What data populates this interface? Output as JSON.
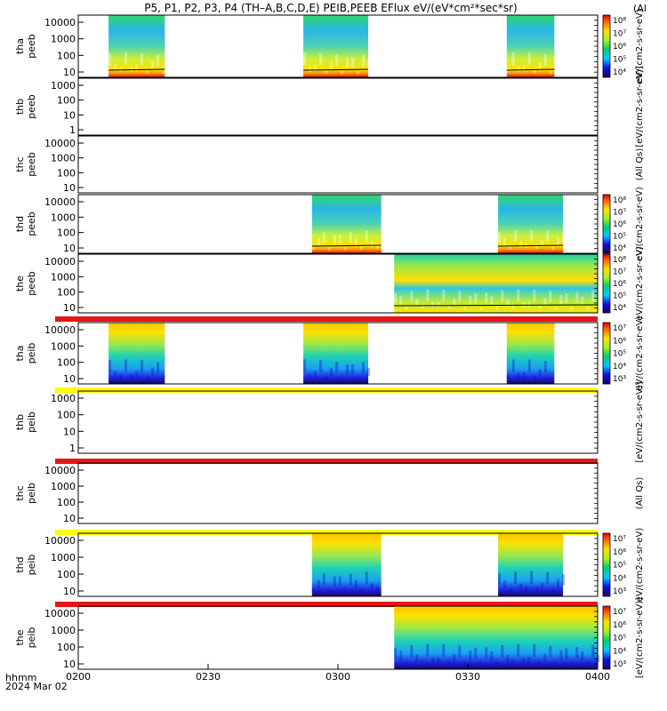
{
  "header": {
    "title": "P5, P1, P2, P3, P4 (TH–A,B,C,D,E) PEIB,PEEB EFlux eV/(eV*cm²*sec*sr)",
    "title_right_fragment": "(Al"
  },
  "footer": {
    "time_label": "hhmm",
    "date_label": "2024 Mar 02"
  },
  "colors": {
    "panel_border": "#000000",
    "red_bar": "#e8141a",
    "yellow_bar": "#ffff00",
    "spectrogram_low": "#1a1ad0",
    "spectrogram_mid": "#3cd25a",
    "spectrogram_high": "#ffd200",
    "spectrogram_peak": "#ff5a00"
  },
  "chart_data": {
    "type": "heatmap",
    "x_axis": {
      "unit": "hhmm",
      "range": [
        "0200",
        "0400"
      ],
      "ticks": [
        "0200",
        "0230",
        "0300",
        "0330",
        "0400"
      ]
    },
    "panels": [
      {
        "probe": "tha",
        "instrument": "peeb",
        "label_lines": [
          "tha",
          "peeb"
        ],
        "y_ticks": [
          "10000",
          "1000",
          "100",
          "10"
        ],
        "colorbar": {
          "ticks": [
            "10⁸",
            "10⁷",
            "10⁶",
            "10⁵",
            "10⁴"
          ],
          "label": "eV/(cm2-s-sr-eV)"
        },
        "coverage_hhmm": [
          [
            "0207",
            "0220"
          ],
          [
            "0252",
            "0307"
          ],
          [
            "0339",
            "0350"
          ]
        ],
        "status_bar": null
      },
      {
        "probe": "thb",
        "instrument": "peeb",
        "label_lines": [
          "thb",
          "peeb"
        ],
        "y_ticks": [
          "1000",
          "100",
          "10",
          "1"
        ],
        "colorbar": {
          "ticks": [],
          "label": "[eV/(cm2-s-sr-eV)]"
        },
        "coverage_hhmm": [],
        "status_bar": null
      },
      {
        "probe": "thc",
        "instrument": "peeb",
        "label_lines": [
          "thc",
          "peeb"
        ],
        "y_ticks": [
          "10000",
          "1000",
          "100",
          "10"
        ],
        "colorbar": {
          "ticks": [],
          "label": "(All Qs)"
        },
        "coverage_hhmm": [],
        "status_bar": null
      },
      {
        "probe": "thd",
        "instrument": "peeb",
        "label_lines": [
          "thd",
          "peeb"
        ],
        "y_ticks": [
          "10000",
          "1000",
          "100",
          "10"
        ],
        "colorbar": {
          "ticks": [
            "10⁸",
            "10⁷",
            "10⁶",
            "10⁵",
            "10⁴"
          ],
          "label": "eV/(cm2-s-sr-eV)"
        },
        "coverage_hhmm": [
          [
            "0254",
            "0310"
          ],
          [
            "0337",
            "0352"
          ]
        ],
        "status_bar": null
      },
      {
        "probe": "the",
        "instrument": "peeb",
        "label_lines": [
          "the",
          "peeb"
        ],
        "y_ticks": [
          "10000",
          "1000",
          "100",
          "10"
        ],
        "colorbar": {
          "ticks": [
            "10⁸",
            "10⁷",
            "10⁶",
            "10⁵",
            "10⁴"
          ],
          "label": "eV/(cm2-s-sr-eV)"
        },
        "coverage_hhmm": [
          [
            "0313",
            "0400"
          ]
        ],
        "status_bar": "red"
      },
      {
        "probe": "tha",
        "instrument": "peib",
        "label_lines": [
          "tha",
          "peib"
        ],
        "y_ticks": [
          "10000",
          "1000",
          "100",
          "10"
        ],
        "colorbar": {
          "ticks": [
            "10⁷",
            "10⁶",
            "10⁵",
            "10⁴",
            "10³"
          ],
          "label": "eV/(cm2-s-sr-eV)"
        },
        "coverage_hhmm": [
          [
            "0207",
            "0220"
          ],
          [
            "0252",
            "0307"
          ],
          [
            "0339",
            "0350"
          ]
        ],
        "status_bar": "yellow"
      },
      {
        "probe": "thb",
        "instrument": "peib",
        "label_lines": [
          "thb",
          "peib"
        ],
        "y_ticks": [
          "1000",
          "100",
          "10",
          "1"
        ],
        "colorbar": {
          "ticks": [],
          "label": "[eV/(cm2-s-sr-eV)]"
        },
        "coverage_hhmm": [],
        "status_bar": "red"
      },
      {
        "probe": "thc",
        "instrument": "peib",
        "label_lines": [
          "thc",
          "peib"
        ],
        "y_ticks": [
          "10000",
          "1000",
          "100",
          "10"
        ],
        "colorbar": {
          "ticks": [],
          "label": "(All Qs)"
        },
        "coverage_hhmm": [],
        "status_bar": "yellow"
      },
      {
        "probe": "thd",
        "instrument": "peib",
        "label_lines": [
          "thd",
          "peib"
        ],
        "y_ticks": [
          "10000",
          "1000",
          "100",
          "10"
        ],
        "colorbar": {
          "ticks": [
            "10⁷",
            "10⁶",
            "10⁵",
            "10⁴",
            "10³"
          ],
          "label": "eV/(cm2-s-sr-eV)"
        },
        "coverage_hhmm": [
          [
            "0254",
            "0310"
          ],
          [
            "0337",
            "0352"
          ]
        ],
        "status_bar": "red"
      },
      {
        "probe": "the",
        "instrument": "peib",
        "label_lines": [
          "the",
          "peib"
        ],
        "y_ticks": [
          "10000",
          "1000",
          "100",
          "10"
        ],
        "colorbar": {
          "ticks": [
            "10⁷",
            "10⁶",
            "10⁵",
            "10⁴",
            "10³"
          ],
          "label": "[eV/(cm2-s-sr-eV)]"
        },
        "coverage_hhmm": [
          [
            "0313",
            "0400"
          ]
        ],
        "status_bar": null
      }
    ]
  }
}
